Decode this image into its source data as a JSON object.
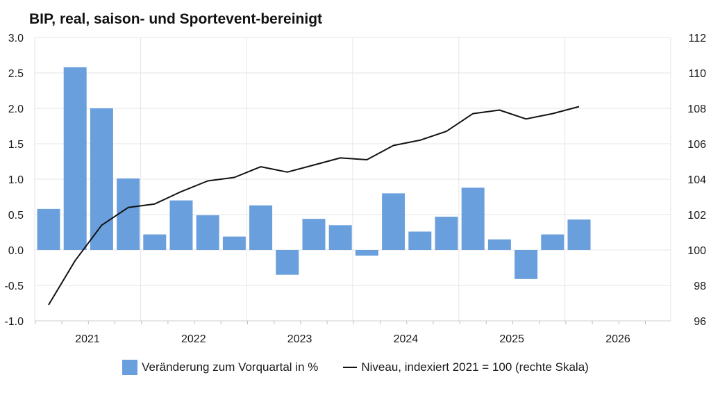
{
  "chart_data": {
    "type": "bar",
    "title": "BIP, real, saison- und Sportevent-bereinigt",
    "x_tick_labels": [
      "2021",
      "2022",
      "2023",
      "2024",
      "2025",
      "2026"
    ],
    "y_left": {
      "lim": [
        -1.0,
        3.0
      ],
      "ticks": [
        "-1.0",
        "-0.5",
        "0.0",
        "0.5",
        "1.0",
        "1.5",
        "2.0",
        "2.5",
        "3.0"
      ]
    },
    "y_right": {
      "lim": [
        96,
        112
      ],
      "ticks": [
        "96",
        "98",
        "100",
        "102",
        "104",
        "106",
        "108",
        "110",
        "112"
      ]
    },
    "grid": true,
    "legend_position": "bottom",
    "series": [
      {
        "name": "Veränderung zum Vorquartal in %",
        "type": "bar",
        "axis": "left",
        "color": "#6a9fdd",
        "x": [
          "2020 Q3",
          "2020 Q4",
          "2021 Q1",
          "2021 Q2",
          "2021 Q3",
          "2021 Q4",
          "2022 Q1",
          "2022 Q2",
          "2022 Q3",
          "2022 Q4",
          "2023 Q1",
          "2023 Q2",
          "2023 Q3",
          "2023 Q4",
          "2024 Q1",
          "2024 Q2",
          "2024 Q3",
          "2024 Q4",
          "2025 Q1",
          "2025 Q2",
          "2025 Q3"
        ],
        "values": [
          0.58,
          2.58,
          2.0,
          1.01,
          0.22,
          0.7,
          0.49,
          0.19,
          0.63,
          -0.35,
          0.44,
          0.35,
          -0.08,
          0.8,
          0.26,
          0.47,
          0.88,
          0.15,
          -0.41,
          0.22,
          0.43
        ]
      },
      {
        "name": "Niveau, indexiert 2021 = 100 (rechte Skala)",
        "type": "line",
        "axis": "right",
        "color": "#111111",
        "x": [
          "2020 Q3",
          "2020 Q4",
          "2021 Q1",
          "2021 Q2",
          "2021 Q3",
          "2021 Q4",
          "2022 Q1",
          "2022 Q2",
          "2022 Q3",
          "2022 Q4",
          "2023 Q1",
          "2023 Q2",
          "2023 Q3",
          "2023 Q4",
          "2024 Q1",
          "2024 Q2",
          "2024 Q3",
          "2024 Q4",
          "2025 Q1",
          "2025 Q2",
          "2025 Q3"
        ],
        "values": [
          96.9,
          99.4,
          101.4,
          102.4,
          102.6,
          103.3,
          103.9,
          104.1,
          104.7,
          104.4,
          104.8,
          105.2,
          105.1,
          105.9,
          106.2,
          106.7,
          107.7,
          107.9,
          107.4,
          107.7,
          108.1
        ]
      }
    ]
  }
}
